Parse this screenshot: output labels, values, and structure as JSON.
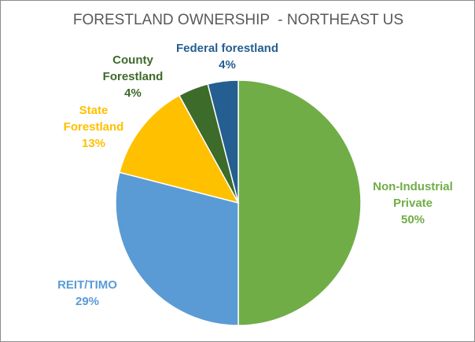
{
  "chart_data": {
    "type": "pie",
    "title": "FORESTLAND OWNERSHIP  - NORTHEAST US",
    "categories": [
      "Non-Industrial Private",
      "REIT/TIMO",
      "State Forestland",
      "County Forestland",
      "Federal forestland"
    ],
    "values": [
      50,
      29,
      13,
      4,
      4
    ],
    "value_labels": [
      "50%",
      "29%",
      "13%",
      "4%",
      "4%"
    ],
    "colors": [
      "#70ad47",
      "#5b9bd5",
      "#ffc000",
      "#3d6b2a",
      "#255e91"
    ]
  }
}
